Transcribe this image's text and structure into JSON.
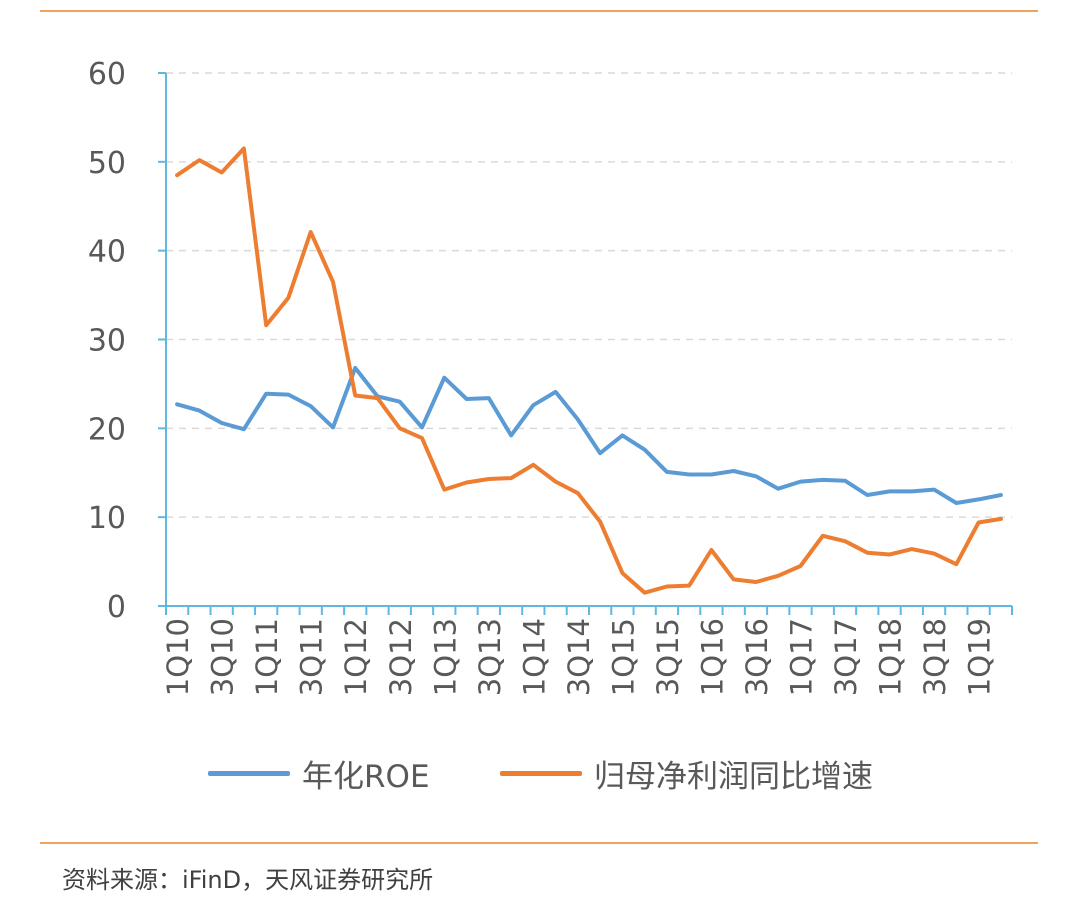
{
  "chart_data": {
    "type": "line",
    "categories": [
      "1Q10",
      "2Q10",
      "3Q10",
      "4Q10",
      "1Q11",
      "2Q11",
      "3Q11",
      "4Q11",
      "1Q12",
      "2Q12",
      "3Q12",
      "4Q12",
      "1Q13",
      "2Q13",
      "3Q13",
      "4Q13",
      "1Q14",
      "2Q14",
      "3Q14",
      "4Q14",
      "1Q15",
      "2Q15",
      "3Q15",
      "4Q15",
      "1Q16",
      "2Q16",
      "3Q16",
      "4Q16",
      "1Q17",
      "2Q17",
      "3Q17",
      "4Q17",
      "1Q18",
      "2Q18",
      "3Q18",
      "4Q18",
      "1Q19",
      "2Q19"
    ],
    "tick_labels": [
      "1Q10",
      "3Q10",
      "1Q11",
      "3Q11",
      "1Q12",
      "3Q12",
      "1Q13",
      "3Q13",
      "1Q14",
      "3Q14",
      "1Q15",
      "3Q15",
      "1Q16",
      "3Q16",
      "1Q17",
      "3Q17",
      "1Q18",
      "3Q18",
      "1Q19"
    ],
    "ylim": [
      0,
      60
    ],
    "yticks": [
      0,
      10,
      20,
      30,
      40,
      50,
      60
    ],
    "grid": "horizontal-dashed",
    "legend_position": "bottom",
    "series": [
      {
        "name": "年化ROE",
        "color": "#5b9bd5",
        "values": [
          22.7,
          22.0,
          20.6,
          19.9,
          23.9,
          23.8,
          22.5,
          20.1,
          26.8,
          23.6,
          23.0,
          20.1,
          25.7,
          23.3,
          23.4,
          19.2,
          22.6,
          24.1,
          21.0,
          17.2,
          19.2,
          17.6,
          15.1,
          14.8,
          14.8,
          15.2,
          14.6,
          13.2,
          14.0,
          14.2,
          14.1,
          12.5,
          12.9,
          12.9,
          13.1,
          11.6,
          12.0,
          12.5
        ]
      },
      {
        "name": "归母净利润同比增速",
        "color": "#ed7d31",
        "values": [
          48.5,
          50.2,
          48.8,
          51.5,
          31.6,
          34.7,
          42.1,
          36.5,
          23.7,
          23.4,
          20.0,
          18.9,
          13.1,
          13.9,
          14.3,
          14.4,
          15.9,
          14.0,
          12.7,
          9.5,
          3.7,
          1.5,
          2.2,
          2.3,
          6.3,
          3.0,
          2.7,
          3.4,
          4.5,
          7.9,
          7.3,
          6.0,
          5.8,
          6.4,
          5.9,
          4.7,
          9.4,
          9.8
        ]
      }
    ]
  },
  "source": "资料来源：iFinD，天风证券研究所"
}
